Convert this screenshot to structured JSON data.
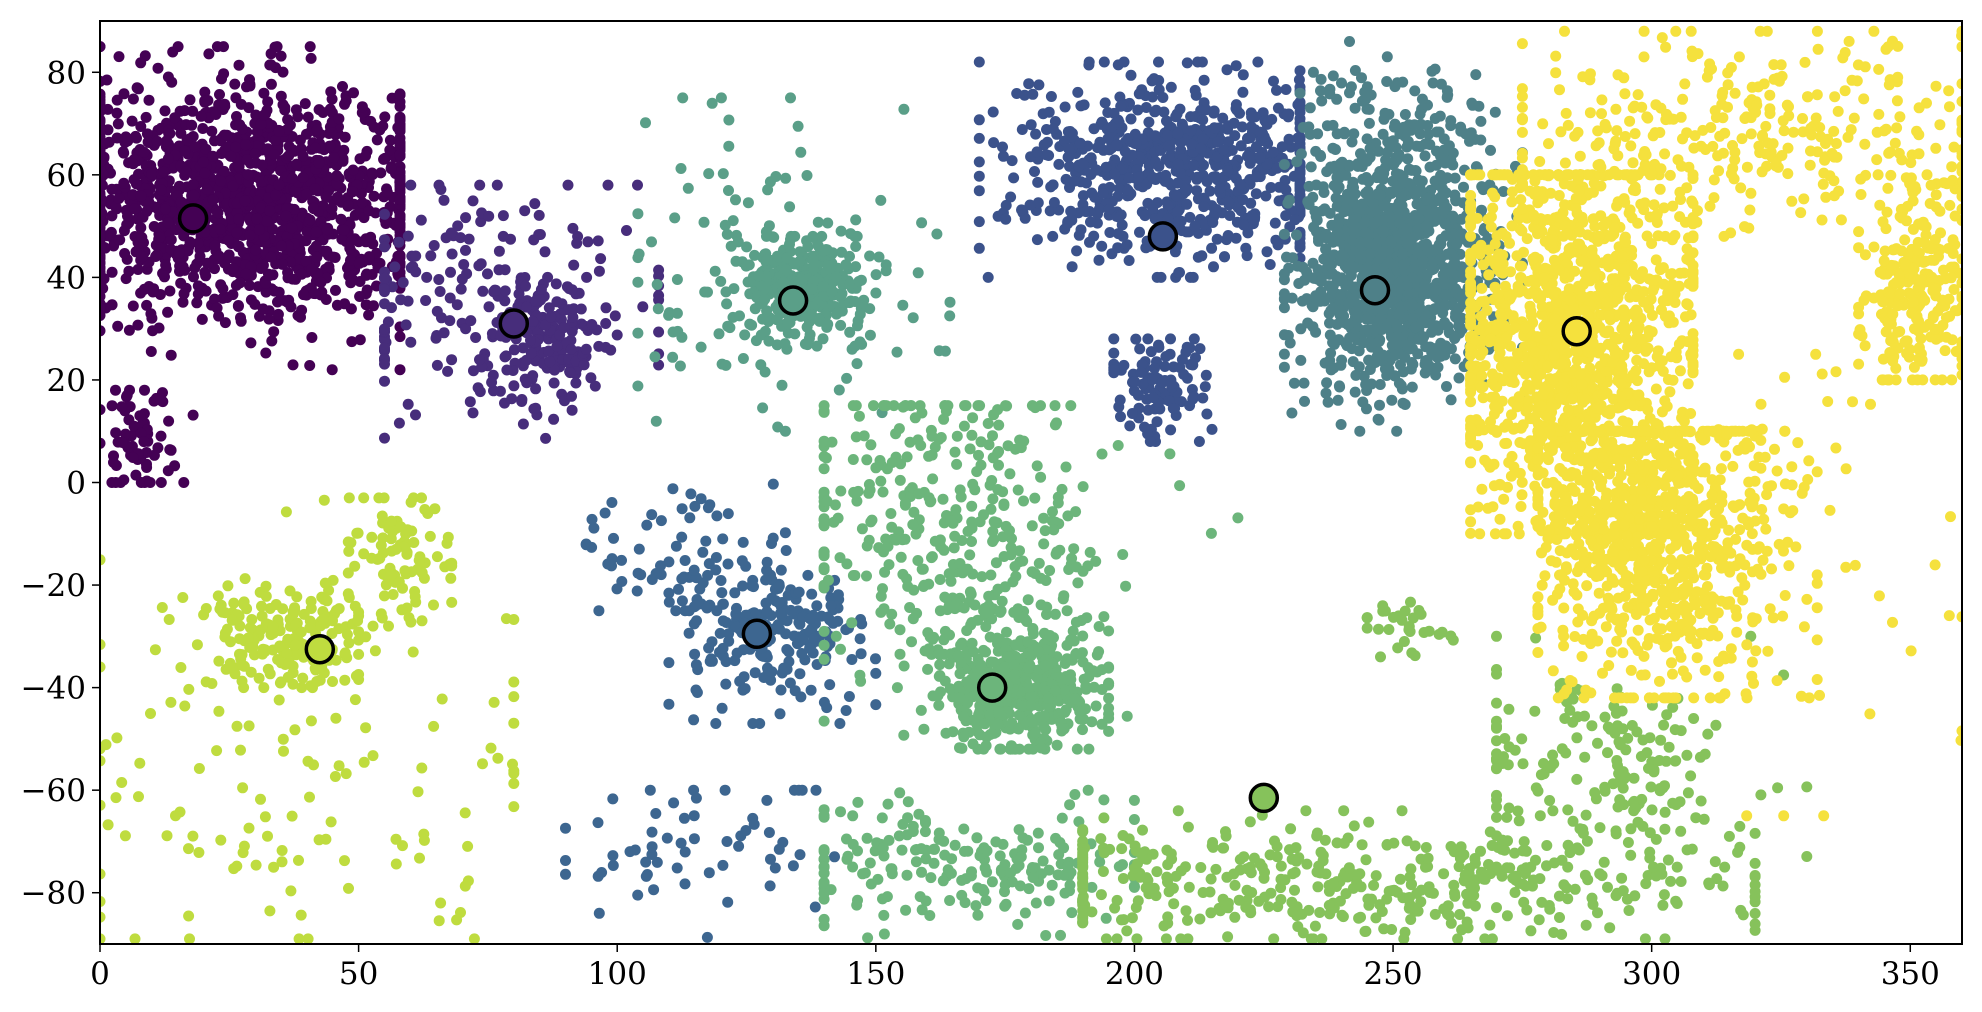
{
  "chart_data": {
    "type": "scatter",
    "title": "",
    "xlabel": "",
    "ylabel": "",
    "xlim": [
      0,
      360
    ],
    "ylim": [
      -90,
      90
    ],
    "grid": false,
    "legend": "none",
    "x_ticks": [
      0,
      50,
      100,
      150,
      200,
      250,
      300,
      350
    ],
    "y_ticks": [
      -80,
      -60,
      -40,
      -20,
      0,
      20,
      40,
      60,
      80
    ],
    "x_tick_labels": [
      "0",
      "50",
      "100",
      "150",
      "200",
      "250",
      "300",
      "350"
    ],
    "y_tick_labels": [
      "−80",
      "−60",
      "−40",
      "−20",
      "0",
      "20",
      "40",
      "60",
      "80"
    ],
    "clusters": [
      {
        "color": "#440154",
        "blobs": [
          {
            "cx": 28,
            "cy": 55,
            "sx": 18,
            "sy": 11,
            "n": 1500,
            "xmin": 0,
            "xmax": 58,
            "ymin": 22,
            "ymax": 85
          },
          {
            "cx": 8,
            "cy": 9,
            "sx": 4,
            "sy": 6,
            "n": 70,
            "xmin": 0,
            "xmax": 18,
            "ymin": 0,
            "ymax": 18
          }
        ]
      },
      {
        "color": "#472d7b",
        "blobs": [
          {
            "cx": 85,
            "cy": 28,
            "sx": 6,
            "sy": 6,
            "n": 160,
            "xmin": 70,
            "xmax": 100,
            "ymin": 5,
            "ymax": 40
          },
          {
            "cx": 75,
            "cy": 38,
            "sx": 18,
            "sy": 12,
            "n": 180,
            "xmin": 55,
            "xmax": 108,
            "ymin": -8,
            "ymax": 58
          }
        ]
      },
      {
        "color": "#3b528b",
        "blobs": [
          {
            "cx": 208,
            "cy": 62,
            "sx": 16,
            "sy": 9,
            "n": 700,
            "xmin": 170,
            "xmax": 232,
            "ymin": 40,
            "ymax": 82
          },
          {
            "cx": 205,
            "cy": 18,
            "sx": 5,
            "sy": 6,
            "n": 110,
            "xmin": 196,
            "xmax": 215,
            "ymin": 8,
            "ymax": 28
          }
        ]
      },
      {
        "color": "#3d6690",
        "blobs": [
          {
            "cx": 130,
            "cy": -30,
            "sx": 9,
            "sy": 7,
            "n": 220,
            "xmin": 110,
            "xmax": 150,
            "ymin": -47,
            "ymax": -10
          },
          {
            "cx": 115,
            "cy": -70,
            "sx": 14,
            "sy": 9,
            "n": 60,
            "xmin": 90,
            "xmax": 142,
            "ymin": -90,
            "ymax": -60
          },
          {
            "cx": 115,
            "cy": -15,
            "sx": 14,
            "sy": 7,
            "n": 70,
            "xmin": 94,
            "xmax": 150,
            "ymin": -25,
            "ymax": 0
          }
        ]
      },
      {
        "color": "#4e8088",
        "blobs": [
          {
            "cx": 250,
            "cy": 42,
            "sx": 9,
            "sy": 11,
            "n": 1200,
            "xmin": 229,
            "xmax": 275,
            "ymin": 10,
            "ymax": 68
          },
          {
            "cx": 252,
            "cy": 70,
            "sx": 10,
            "sy": 6,
            "n": 120,
            "xmin": 232,
            "xmax": 275,
            "ymin": 55,
            "ymax": 86
          }
        ]
      },
      {
        "color": "#5a9f88",
        "blobs": [
          {
            "cx": 136,
            "cy": 38,
            "sx": 6,
            "sy": 5,
            "n": 300,
            "xmin": 120,
            "xmax": 152,
            "ymin": 26,
            "ymax": 48
          },
          {
            "cx": 130,
            "cy": 40,
            "sx": 16,
            "sy": 15,
            "n": 140,
            "xmin": 104,
            "xmax": 165,
            "ymin": 10,
            "ymax": 75
          }
        ]
      },
      {
        "color": "#6cb57b",
        "blobs": [
          {
            "cx": 178,
            "cy": -40,
            "sx": 8,
            "sy": 6,
            "n": 500,
            "xmin": 150,
            "xmax": 195,
            "ymin": -52,
            "ymax": -25
          },
          {
            "cx": 165,
            "cy": -10,
            "sx": 16,
            "sy": 16,
            "n": 400,
            "xmin": 140,
            "xmax": 220,
            "ymin": -50,
            "ymax": 15
          },
          {
            "cx": 165,
            "cy": -75,
            "sx": 20,
            "sy": 6,
            "n": 200,
            "xmin": 140,
            "xmax": 200,
            "ymin": -89,
            "ymax": -60
          }
        ]
      },
      {
        "color": "#86c25b",
        "blobs": [
          {
            "cx": 245,
            "cy": -78,
            "sx": 40,
            "sy": 6,
            "n": 450,
            "xmin": 190,
            "xmax": 320,
            "ymin": -89,
            "ymax": -64
          },
          {
            "cx": 290,
            "cy": -55,
            "sx": 15,
            "sy": 10,
            "n": 180,
            "xmin": 270,
            "xmax": 330,
            "ymin": -75,
            "ymax": -30
          },
          {
            "cx": 253,
            "cy": -28,
            "sx": 4,
            "sy": 3,
            "n": 30,
            "xmin": 245,
            "xmax": 262,
            "ymin": -35,
            "ymax": -20
          }
        ]
      },
      {
        "color": "#bfdc3f",
        "blobs": [
          {
            "cx": 35,
            "cy": -30,
            "sx": 8,
            "sy": 5,
            "n": 180,
            "xmin": 16,
            "xmax": 50,
            "ymin": -40,
            "ymax": -18
          },
          {
            "cx": 58,
            "cy": -15,
            "sx": 5,
            "sy": 7,
            "n": 90,
            "xmin": 48,
            "xmax": 68,
            "ymin": -28,
            "ymax": -3
          },
          {
            "cx": 40,
            "cy": -55,
            "sx": 28,
            "sy": 20,
            "n": 140,
            "xmin": 0,
            "xmax": 80,
            "ymin": -89,
            "ymax": 5
          }
        ]
      },
      {
        "color": "#f5e13d",
        "blobs": [
          {
            "cx": 285,
            "cy": 28,
            "sx": 12,
            "sy": 18,
            "n": 1300,
            "xmin": 265,
            "xmax": 308,
            "ymin": -10,
            "ymax": 60
          },
          {
            "cx": 300,
            "cy": -10,
            "sx": 12,
            "sy": 16,
            "n": 900,
            "xmin": 278,
            "xmax": 332,
            "ymin": -42,
            "ymax": 10
          },
          {
            "cx": 320,
            "cy": 68,
            "sx": 25,
            "sy": 9,
            "n": 350,
            "xmin": 275,
            "xmax": 360,
            "ymin": 48,
            "ymax": 88
          },
          {
            "cx": 352,
            "cy": 38,
            "sx": 5,
            "sy": 10,
            "n": 250,
            "xmin": 340,
            "xmax": 360,
            "ymin": 20,
            "ymax": 60
          },
          {
            "cx": 330,
            "cy": -10,
            "sx": 18,
            "sy": 25,
            "n": 60,
            "xmin": 300,
            "xmax": 360,
            "ymin": -65,
            "ymax": 25
          }
        ]
      }
    ],
    "centroids": [
      {
        "x": 18,
        "y": 51.5,
        "color": "#440154"
      },
      {
        "x": 80,
        "y": 31,
        "color": "#472d7b"
      },
      {
        "x": 205.5,
        "y": 48,
        "color": "#3b528b"
      },
      {
        "x": 127,
        "y": -29.5,
        "color": "#3d6690"
      },
      {
        "x": 246.5,
        "y": 37.5,
        "color": "#4e8088"
      },
      {
        "x": 134,
        "y": 35.5,
        "color": "#5a9f88"
      },
      {
        "x": 172.5,
        "y": -40,
        "color": "#6cb57b"
      },
      {
        "x": 225,
        "y": -61.5,
        "color": "#86c25b"
      },
      {
        "x": 42.5,
        "y": -32.5,
        "color": "#bfdc3f"
      },
      {
        "x": 285.5,
        "y": 29.5,
        "color": "#f5e13d"
      }
    ]
  }
}
